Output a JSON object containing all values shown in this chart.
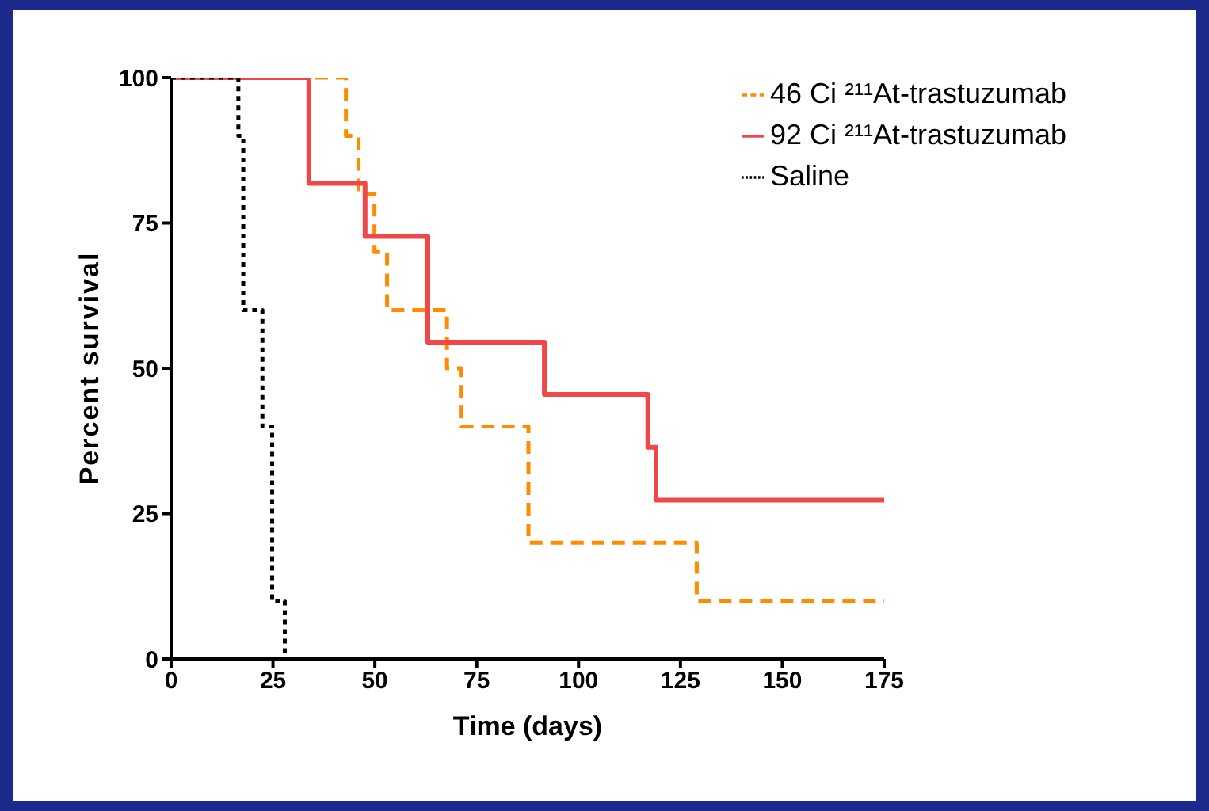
{
  "chart_data": {
    "type": "step",
    "xlabel": "Time (days)",
    "ylabel": "Percent survival",
    "xlim": [
      0,
      175
    ],
    "xticks": [
      0,
      25,
      50,
      75,
      100,
      125,
      150,
      175
    ],
    "ylim": [
      0,
      100
    ],
    "yticks": [
      0,
      25,
      50,
      75,
      100
    ],
    "legend": "top right",
    "grid": false,
    "series": [
      {
        "name": "46 Ci ²¹¹At-trastuzumab",
        "color": "#ff8c00",
        "line_style": "dashed",
        "x": [
          0,
          42.9,
          46,
          49.9,
          53,
          67.7,
          71.1,
          87.7,
          129,
          175
        ],
        "values": [
          100,
          90,
          80,
          70,
          60,
          50,
          40,
          20,
          10,
          10
        ]
      },
      {
        "name": "92 Ci ²¹¹At-trastuzumab",
        "color": "#f04848",
        "line_style": "solid",
        "x": [
          0,
          33.8,
          47.6,
          63,
          91.6,
          117,
          119,
          175
        ],
        "values": [
          100,
          81.8,
          72.7,
          54.5,
          45.5,
          36.4,
          27.3,
          27.3
        ]
      },
      {
        "name": "Saline",
        "color": "#000000",
        "line_style": "dotted",
        "x": [
          0,
          16.5,
          17.7,
          22.4,
          24.8,
          27.9
        ],
        "values": [
          100,
          90,
          60,
          40,
          10,
          0
        ]
      }
    ]
  }
}
